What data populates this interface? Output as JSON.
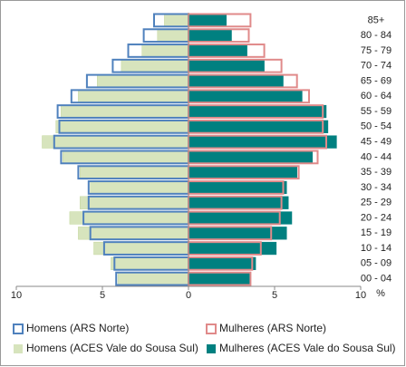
{
  "chart_data": {
    "type": "pyramid",
    "categories": [
      "85+",
      "80 - 84",
      "75 - 79",
      "70 - 74",
      "65 - 69",
      "60 - 64",
      "55 - 59",
      "50 - 54",
      "45 - 49",
      "40 - 44",
      "35 - 39",
      "30 - 34",
      "25 - 29",
      "20 - 24",
      "15 - 19",
      "10 - 14",
      "05 - 09",
      "00 - 04"
    ],
    "series": [
      {
        "name": "Homens (ARS Norte)",
        "color": "#4f81bd",
        "style": "outline",
        "values": [
          -2.0,
          -2.6,
          -3.5,
          -4.4,
          -5.9,
          -6.8,
          -7.6,
          -7.5,
          -7.8,
          -7.4,
          -6.4,
          -5.8,
          -5.8,
          -6.1,
          -5.7,
          -4.9,
          -4.3,
          -4.2
        ]
      },
      {
        "name": "Mulheres (ARS Norte)",
        "color": "#e08a8a",
        "style": "outline",
        "values": [
          3.6,
          3.5,
          4.4,
          5.4,
          6.3,
          7.0,
          7.8,
          7.8,
          8.0,
          7.5,
          6.4,
          5.5,
          5.4,
          5.3,
          4.8,
          4.2,
          3.7,
          3.6
        ]
      },
      {
        "name": "Homens (ACES Vale do Sousa Sul)",
        "color": "#d7e4bd",
        "style": "fill",
        "values": [
          -1.4,
          -1.8,
          -2.7,
          -3.9,
          -5.3,
          -6.4,
          -7.4,
          -7.7,
          -8.5,
          -7.3,
          -6.3,
          -5.7,
          -6.3,
          -6.9,
          -6.4,
          -5.5,
          -4.5,
          -4.1
        ]
      },
      {
        "name": "Mulheres (ACES Vale do Sousa Sul)",
        "color": "#008080",
        "style": "fill",
        "values": [
          2.2,
          2.5,
          3.4,
          4.4,
          5.5,
          6.6,
          8.0,
          8.1,
          8.6,
          7.2,
          6.3,
          5.7,
          5.8,
          6.0,
          5.7,
          5.1,
          3.9,
          3.6
        ]
      }
    ],
    "x_label": "%",
    "xlim": [
      -10,
      10
    ],
    "xticks": [
      {
        "value": -10,
        "label": "10"
      },
      {
        "value": -5,
        "label": "5"
      },
      0,
      5,
      10
    ]
  }
}
